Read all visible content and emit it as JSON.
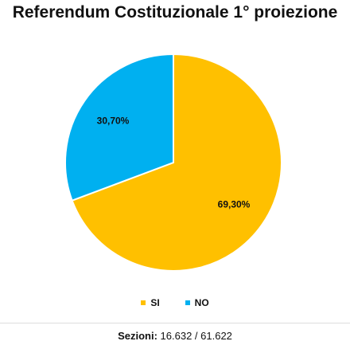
{
  "chart_data": {
    "type": "pie",
    "title": "Referendum Costituzionale 1° proiezione",
    "categories": [
      "SI",
      "NO"
    ],
    "values": [
      69.3,
      30.7
    ],
    "labels": [
      "69,30%",
      "30,70%"
    ],
    "colors": [
      "#FFC000",
      "#00B0F0"
    ],
    "legend": "bottom"
  },
  "footer": {
    "label": "Sezioni:",
    "value": "16.632 / 61.622"
  }
}
